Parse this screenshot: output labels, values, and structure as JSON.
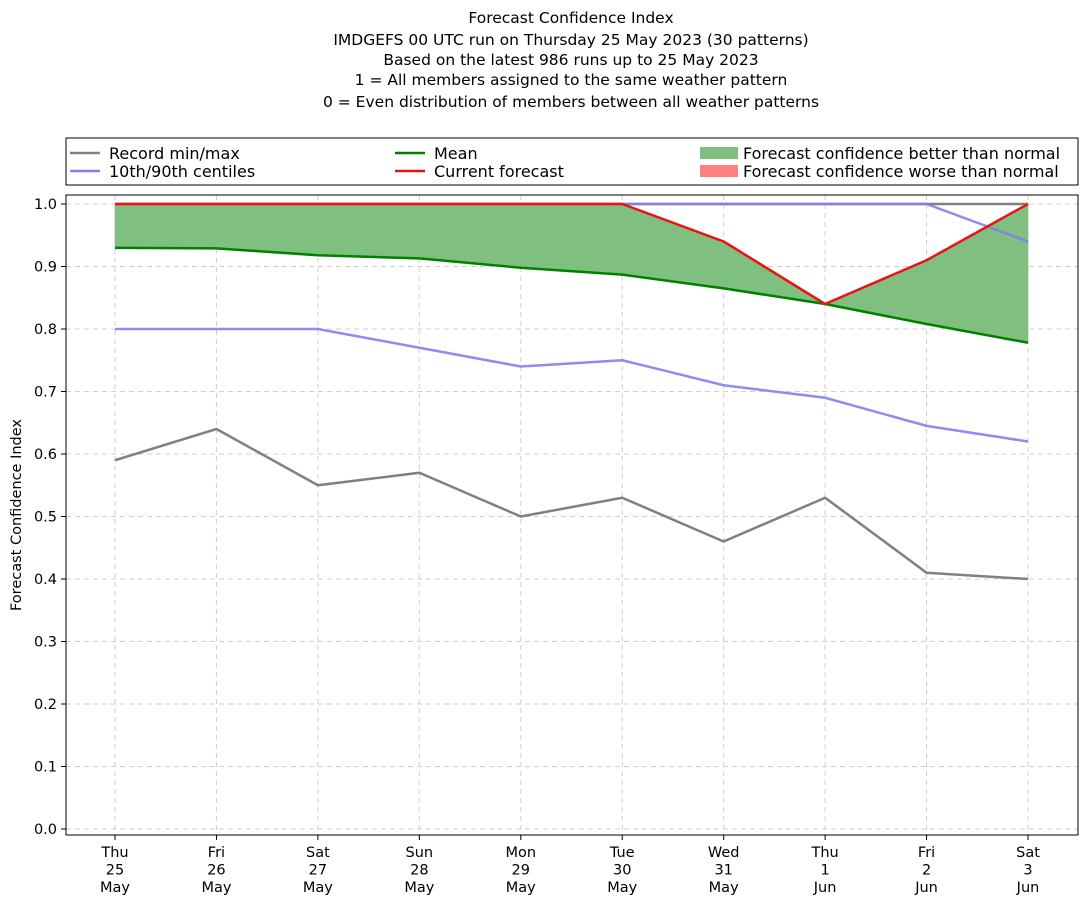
{
  "chart_data": {
    "type": "line",
    "title_lines": [
      "Forecast Confidence Index",
      "IMDGEFS 00 UTC run on Thursday 25 May 2023 (30 patterns)",
      "Based on the latest 986 runs up to 25 May 2023",
      "1 = All members assigned to the same weather pattern",
      "0 = Even distribution of members between all weather patterns"
    ],
    "ylabel": "Forecast Confidence Index",
    "xlabel": "",
    "ylim": [
      0.0,
      1.0
    ],
    "yticks": [
      "0.0",
      "0.1",
      "0.2",
      "0.3",
      "0.4",
      "0.5",
      "0.6",
      "0.7",
      "0.8",
      "0.9",
      "1.0"
    ],
    "grid": true,
    "legend_placement": "top, above plot",
    "categories": [
      [
        "Thu",
        "25",
        "May"
      ],
      [
        "Fri",
        "26",
        "May"
      ],
      [
        "Sat",
        "27",
        "May"
      ],
      [
        "Sun",
        "28",
        "May"
      ],
      [
        "Mon",
        "29",
        "May"
      ],
      [
        "Tue",
        "30",
        "May"
      ],
      [
        "Wed",
        "31",
        "May"
      ],
      [
        "Thu",
        "1",
        "Jun"
      ],
      [
        "Fri",
        "2",
        "Jun"
      ],
      [
        "Sat",
        "3",
        "Jun"
      ]
    ],
    "series": [
      {
        "name": "Record min",
        "legend": "Record min/max",
        "color": "#808080",
        "values": [
          0.59,
          0.64,
          0.55,
          0.57,
          0.5,
          0.53,
          0.46,
          0.53,
          0.41,
          0.4
        ]
      },
      {
        "name": "Record max",
        "legend": "Record min/max",
        "color": "#808080",
        "values": [
          1.0,
          1.0,
          1.0,
          1.0,
          1.0,
          1.0,
          1.0,
          1.0,
          1.0,
          1.0
        ]
      },
      {
        "name": "10th centile",
        "legend": "10th/90th centiles",
        "color": "#8080f0",
        "values": [
          0.8,
          0.8,
          0.8,
          0.77,
          0.74,
          0.75,
          0.71,
          0.69,
          0.645,
          0.62
        ]
      },
      {
        "name": "90th centile",
        "legend": "10th/90th centiles",
        "color": "#8080f0",
        "values": [
          1.0,
          1.0,
          1.0,
          1.0,
          1.0,
          1.0,
          1.0,
          1.0,
          1.0,
          0.94
        ]
      },
      {
        "name": "Mean",
        "legend": "Mean",
        "color": "#008000",
        "values": [
          0.93,
          0.929,
          0.918,
          0.913,
          0.898,
          0.887,
          0.865,
          0.84,
          0.808,
          0.778
        ]
      },
      {
        "name": "Current forecast",
        "legend": "Current forecast",
        "color": "#ee1111",
        "values": [
          1.0,
          1.0,
          1.0,
          1.0,
          1.0,
          1.0,
          0.94,
          0.84,
          0.91,
          1.0
        ]
      }
    ],
    "fills": [
      {
        "name": "Forecast confidence better than normal",
        "color": "#7fbf7f"
      },
      {
        "name": "Forecast confidence worse than normal",
        "color": "#ff8080"
      }
    ],
    "legend": [
      {
        "label": "Record min/max",
        "kind": "line",
        "color": "#808080"
      },
      {
        "label": "10th/90th centiles",
        "kind": "line",
        "color": "#8080f0"
      },
      {
        "label": "Mean",
        "kind": "line",
        "color": "#008000"
      },
      {
        "label": "Current forecast",
        "kind": "line",
        "color": "#ee1111"
      },
      {
        "label": "Forecast confidence better than normal",
        "kind": "patch",
        "color": "#7fbf7f"
      },
      {
        "label": "Forecast confidence worse than normal",
        "kind": "patch",
        "color": "#ff8080"
      }
    ]
  }
}
